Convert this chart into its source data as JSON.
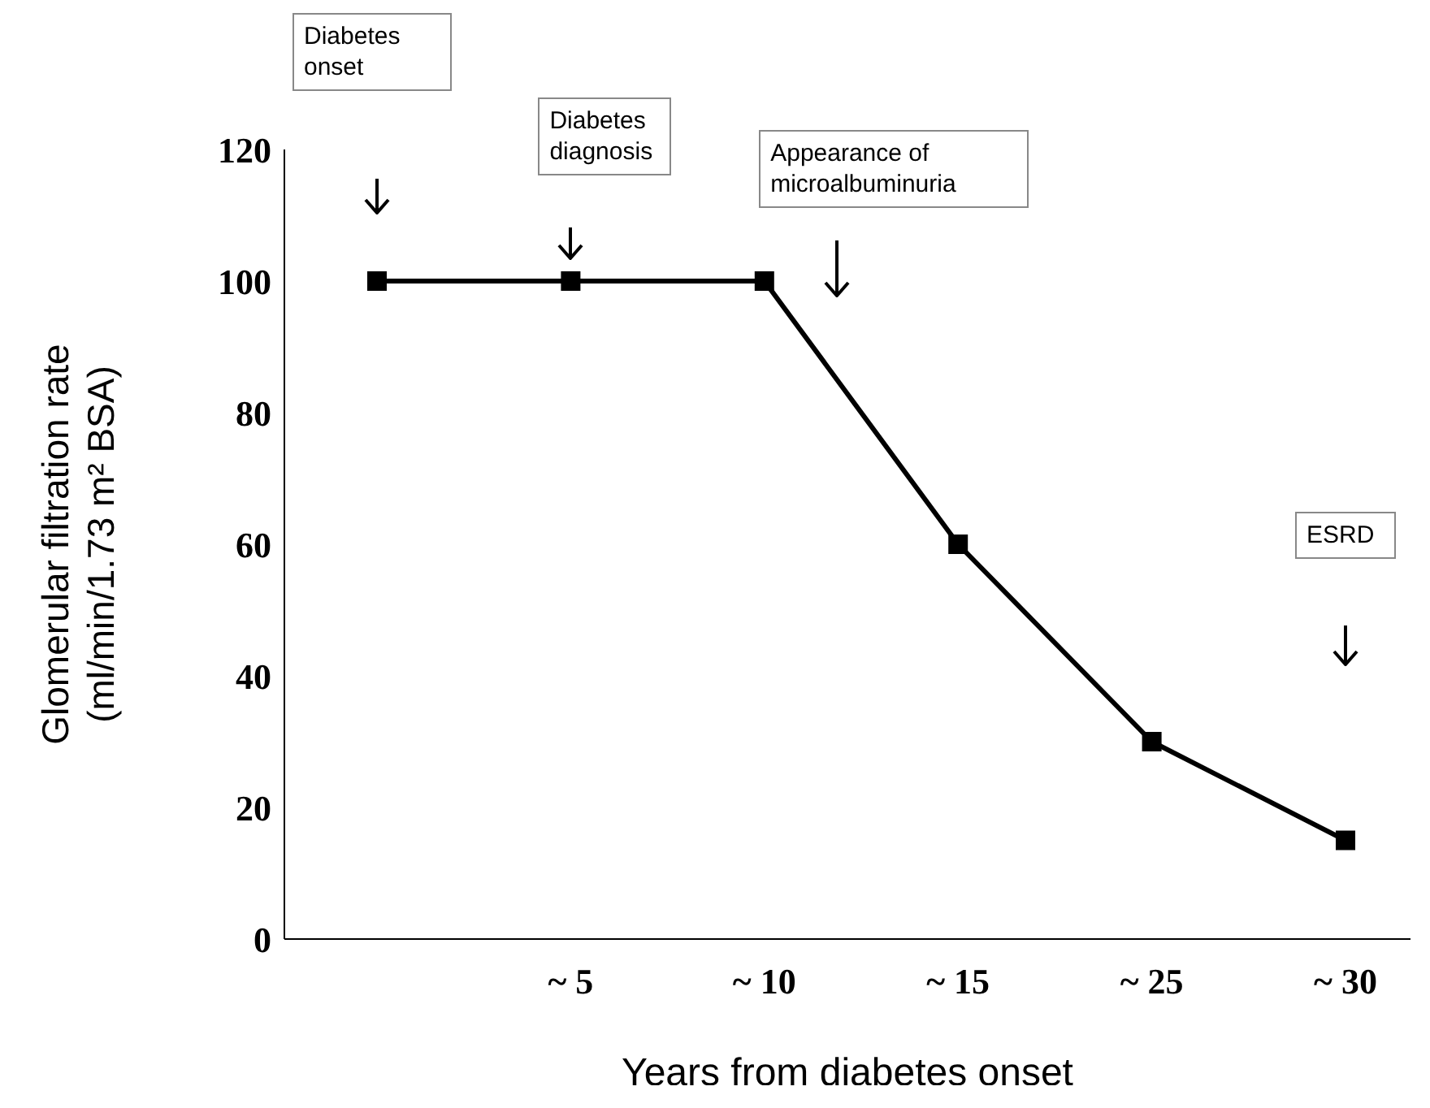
{
  "chart_data": {
    "type": "line",
    "xlabel": "Years from diabetes onset",
    "ylabel": "Glomerular filtration rate (ml/min/1.73 m² BSA)",
    "categories": [
      null,
      "~ 5",
      "~ 10",
      "~ 15",
      "~ 25",
      "~ 30"
    ],
    "series": [
      {
        "color": "#000000",
        "values": [
          100,
          100,
          100,
          60,
          30,
          15
        ]
      }
    ],
    "ylim": [
      0,
      120
    ],
    "yticks": [
      0,
      20,
      40,
      60,
      80,
      100,
      120
    ],
    "grid": false,
    "legend": false,
    "marker": "square",
    "line_style": "solid",
    "annotations": [
      "Diabetes onset",
      "Diabetes diagnosis",
      "Appearance of microalbuminuria",
      "ESRD"
    ]
  }
}
